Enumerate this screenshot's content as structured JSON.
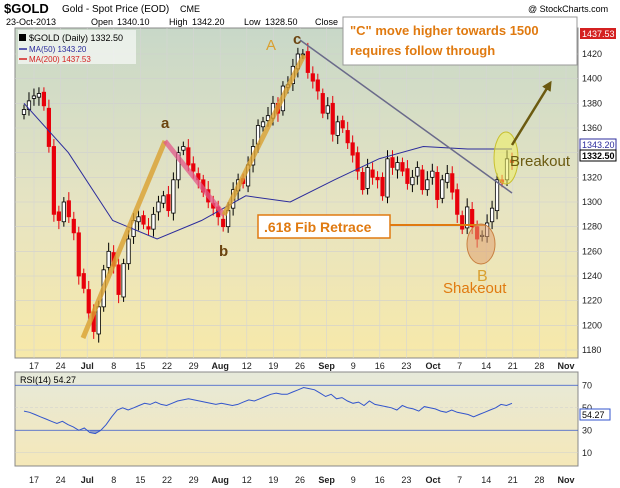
{
  "header": {
    "symbol": "$GOLD",
    "name": "Gold - Spot Price (EOD)",
    "exchange": "CME",
    "date": "23-Oct-2013",
    "open_label": "Open",
    "open": "1340.10",
    "high_label": "High",
    "high": "1342.20",
    "low_label": "Low",
    "low": "1328.50",
    "close_label": "Close",
    "watermark": "@ StockCharts.com"
  },
  "legend": {
    "price": "$GOLD (Daily) 1332.50",
    "ma50": "MA(50) 1343.20",
    "ma200": "MA(200) 1437.53",
    "rsi": "RSI(14) 54.27"
  },
  "colors": {
    "candle_up": "#000000",
    "candle_down": "#e8000b",
    "ma50": "#2c2c9c",
    "ma200": "#d42020",
    "annotation_orange": "#e07a10",
    "wave_gold": "#d9a030",
    "trend_arrow": "#6b5a10",
    "rsi_line": "#3355cc"
  },
  "chart_data": {
    "type": "candlestick",
    "y_axis": {
      "min": 1180,
      "max": 1440,
      "ticks": [
        1180,
        1200,
        1220,
        1240,
        1260,
        1280,
        1300,
        1320,
        1340,
        1360,
        1380,
        1400,
        1420
      ],
      "ma50_value_label": "1343.20",
      "close_value_label": "1332.50",
      "ma200_value_label": "1437.53"
    },
    "x_axis": {
      "tick_labels": [
        "17",
        "24",
        "Jul",
        "8",
        "15",
        "22",
        "29",
        "Aug",
        "12",
        "19",
        "26",
        "Sep",
        "9",
        "16",
        "23",
        "Oct",
        "7",
        "14",
        "21",
        "28",
        "Nov"
      ],
      "month_labels": [
        "Jul",
        "Aug",
        "Sep",
        "Oct",
        "Nov"
      ]
    },
    "series": [
      {
        "name": "$GOLD (Daily)",
        "close": [
          1375,
          1382,
          1386,
          1388,
          1378,
          1345,
          1290,
          1285,
          1300,
          1288,
          1275,
          1240,
          1230,
          1210,
          1195,
          1215,
          1245,
          1260,
          1248,
          1225,
          1250,
          1270,
          1285,
          1288,
          1282,
          1278,
          1290,
          1300,
          1305,
          1293,
          1318,
          1340,
          1345,
          1330,
          1325,
          1318,
          1308,
          1300,
          1295,
          1288,
          1280,
          1293,
          1310,
          1318,
          1315,
          1330,
          1345,
          1362,
          1365,
          1370,
          1380,
          1372,
          1394,
          1395,
          1410,
          1420,
          1420,
          1405,
          1398,
          1390,
          1372,
          1378,
          1355,
          1365,
          1360,
          1348,
          1338,
          1325,
          1310,
          1328,
          1320,
          1318,
          1305,
          1335,
          1328,
          1332,
          1325,
          1315,
          1320,
          1328,
          1310,
          1318,
          1325,
          1302,
          1318,
          1323,
          1308,
          1290,
          1278,
          1296,
          1280,
          1270,
          1273,
          1283,
          1295,
          1318,
          1316,
          1335,
          1332
        ]
      },
      {
        "name": "MA(50)",
        "values": [
          1380,
          1340,
          1285,
          1270,
          1285,
          1305,
          1300,
          1318,
          1335,
          1345,
          1343,
          1343
        ]
      },
      {
        "name": "MA(200)",
        "values": [
          1437.53
        ]
      }
    ],
    "rsi": {
      "name": "RSI(14)",
      "min": 0,
      "max": 80,
      "ticks": [
        10,
        30,
        50,
        70
      ],
      "overbought": 70,
      "oversold": 30,
      "value_label": "54.27",
      "values": [
        47,
        46,
        44,
        42,
        40,
        38,
        36,
        38,
        35,
        33,
        30,
        32,
        28,
        27,
        30,
        35,
        42,
        48,
        50,
        48,
        50,
        52,
        54,
        53,
        55,
        53,
        52,
        54,
        56,
        57,
        58,
        57,
        56,
        55,
        54,
        53,
        54,
        53,
        52,
        53,
        55,
        57,
        56,
        58,
        60,
        62,
        63,
        62,
        62,
        64,
        66,
        68,
        67,
        66,
        63,
        60,
        62,
        58,
        59,
        56,
        54,
        55,
        52,
        56,
        53,
        52,
        51,
        50,
        48,
        52,
        50,
        49,
        47,
        51,
        50,
        49,
        47,
        46,
        48,
        46,
        45,
        44,
        42,
        44,
        46,
        48,
        50,
        53,
        52,
        54
      ]
    }
  },
  "annotations": {
    "callout_line1": "\"C\" move higher towards 1500",
    "callout_line2": "requires follow through",
    "fib": ".618 Fib Retrace",
    "label_a_small": "a",
    "label_b_small": "b",
    "label_A": "A",
    "label_c_small": "c",
    "label_B": "B",
    "shakeout": "Shakeout",
    "breakout": "Breakout"
  }
}
